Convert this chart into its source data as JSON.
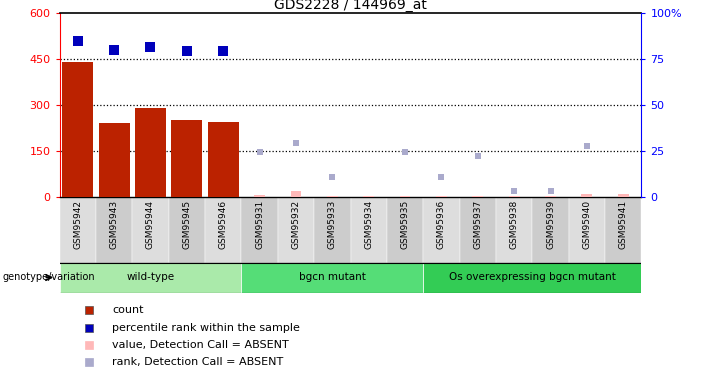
{
  "title": "GDS2228 / 144969_at",
  "samples": [
    "GSM95942",
    "GSM95943",
    "GSM95944",
    "GSM95945",
    "GSM95946",
    "GSM95931",
    "GSM95932",
    "GSM95933",
    "GSM95934",
    "GSM95935",
    "GSM95936",
    "GSM95937",
    "GSM95938",
    "GSM95939",
    "GSM95940",
    "GSM95941"
  ],
  "counts": [
    440,
    240,
    290,
    250,
    245,
    null,
    null,
    null,
    null,
    null,
    null,
    null,
    null,
    null,
    null,
    null
  ],
  "counts_absent": [
    null,
    null,
    null,
    null,
    null,
    5,
    18,
    3,
    3,
    3,
    3,
    3,
    3,
    3,
    10,
    10
  ],
  "percentile_ranks_left": [
    510,
    480,
    490,
    475,
    475,
    null,
    null,
    null,
    null,
    null,
    null,
    null,
    null,
    null,
    null,
    null
  ],
  "rank_absent_left": [
    null,
    null,
    null,
    null,
    null,
    145,
    175,
    65,
    null,
    145,
    65,
    135,
    20,
    20,
    165,
    null
  ],
  "ylim_left": [
    0,
    600
  ],
  "ylim_right": [
    0,
    100
  ],
  "yticks_left": [
    0,
    150,
    300,
    450,
    600
  ],
  "yticks_right": [
    0,
    25,
    50,
    75,
    100
  ],
  "ytick_labels_left": [
    "0",
    "150",
    "300",
    "450",
    "600"
  ],
  "ytick_labels_right": [
    "0",
    "25",
    "50",
    "75",
    "100%"
  ],
  "groups": [
    {
      "label": "wild-type",
      "start": 0,
      "end": 5,
      "color": "#AAEAAA"
    },
    {
      "label": "bgcn mutant",
      "start": 5,
      "end": 10,
      "color": "#55DD77"
    },
    {
      "label": "Os overexpressing bgcn mutant",
      "start": 10,
      "end": 16,
      "color": "#33CC55"
    }
  ],
  "bar_color": "#BB2200",
  "bar_absent_color": "#FFB8B8",
  "rank_color": "#0000BB",
  "rank_absent_color": "#AAAACC",
  "col_bg_color": "#DDDDDD",
  "tick_label_bg": "#CCCCCC",
  "plot_bg": "#FFFFFF"
}
